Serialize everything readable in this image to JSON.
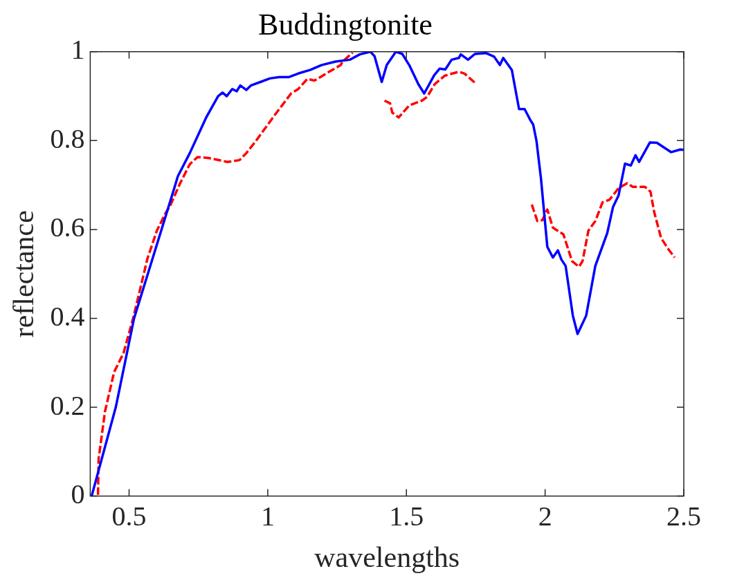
{
  "chart_data": {
    "type": "line",
    "title": "Buddingtonite",
    "xlabel": "wavelengths",
    "ylabel": "reflectance",
    "xlim": [
      0.36,
      2.5
    ],
    "ylim": [
      0,
      1
    ],
    "xticks": [
      0.5,
      1,
      1.5,
      2,
      2.5
    ],
    "yticks": [
      0,
      0.2,
      0.4,
      0.6,
      0.8,
      1
    ],
    "series": [
      {
        "color": "#0000ff",
        "line_style": "solid",
        "x": [
          0.365,
          0.452,
          0.518,
          0.617,
          0.663,
          0.676,
          0.719,
          0.778,
          0.821,
          0.837,
          0.852,
          0.872,
          0.888,
          0.901,
          0.923,
          0.939,
          0.974,
          1.008,
          1.041,
          1.077,
          1.11,
          1.153,
          1.194,
          1.245,
          1.296,
          1.332,
          1.37,
          1.385,
          1.411,
          1.429,
          1.462,
          1.485,
          1.51,
          1.543,
          1.564,
          1.6,
          1.62,
          1.64,
          1.663,
          1.689,
          1.696,
          1.722,
          1.747,
          1.786,
          1.816,
          1.837,
          1.849,
          1.88,
          1.906,
          1.926,
          1.946,
          1.957,
          1.969,
          1.985,
          2.008,
          2.028,
          2.046,
          2.059,
          2.074,
          2.1,
          2.117,
          2.148,
          2.181,
          2.224,
          2.245,
          2.265,
          2.288,
          2.309,
          2.326,
          2.339,
          2.378,
          2.403,
          2.454,
          2.487,
          2.5
        ],
        "values": [
          0,
          0.2,
          0.4,
          0.6,
          0.693,
          0.72,
          0.772,
          0.852,
          0.9,
          0.908,
          0.9,
          0.916,
          0.911,
          0.924,
          0.914,
          0.924,
          0.932,
          0.94,
          0.943,
          0.943,
          0.951,
          0.959,
          0.97,
          0.978,
          0.982,
          0.994,
          1.0,
          0.99,
          0.932,
          0.97,
          1.0,
          0.995,
          0.97,
          0.927,
          0.906,
          0.947,
          0.962,
          0.96,
          0.982,
          0.986,
          0.994,
          0.982,
          0.995,
          0.997,
          0.989,
          0.97,
          0.986,
          0.959,
          0.871,
          0.871,
          0.847,
          0.836,
          0.799,
          0.715,
          0.561,
          0.537,
          0.553,
          0.532,
          0.518,
          0.406,
          0.365,
          0.406,
          0.518,
          0.592,
          0.651,
          0.677,
          0.748,
          0.744,
          0.767,
          0.752,
          0.796,
          0.795,
          0.774,
          0.78,
          0.779
        ]
      },
      {
        "color": "#ff0000",
        "line_style": "dashed",
        "x": [
          0.388,
          0.39,
          0.413,
          0.446,
          0.48,
          0.515,
          0.566,
          0.6,
          0.63,
          0.65,
          0.684,
          0.719,
          0.747,
          0.786,
          0.855,
          0.898,
          0.923,
          0.957,
          1.026,
          1.084,
          1.11,
          1.143,
          1.168,
          1.219,
          1.263,
          1.27,
          1.306,
          1.36,
          1.421,
          1.441,
          1.449,
          1.472,
          1.51,
          1.556,
          1.574,
          1.602,
          1.638,
          1.689,
          1.709,
          1.747,
          1.85,
          1.952,
          1.959,
          1.972,
          1.99,
          2.008,
          2.028,
          2.066,
          2.097,
          2.122,
          2.135,
          2.156,
          2.181,
          2.207,
          2.232,
          2.265,
          2.296,
          2.316,
          2.36,
          2.38,
          2.393,
          2.418,
          2.444,
          2.467
        ],
        "values": [
          0.003,
          0.083,
          0.19,
          0.279,
          0.322,
          0.401,
          0.534,
          0.597,
          0.635,
          0.656,
          0.704,
          0.747,
          0.763,
          0.761,
          0.752,
          0.756,
          0.772,
          0.799,
          0.858,
          0.906,
          0.916,
          0.939,
          0.935,
          0.954,
          0.97,
          0.978,
          0.998,
          null,
          0.89,
          0.884,
          0.863,
          0.852,
          0.879,
          0.89,
          0.898,
          0.927,
          0.946,
          0.955,
          0.951,
          0.93,
          null,
          0.656,
          0.643,
          0.619,
          0.621,
          0.645,
          0.604,
          0.589,
          0.529,
          0.516,
          0.529,
          0.597,
          0.619,
          0.661,
          0.667,
          0.693,
          0.704,
          0.696,
          0.696,
          0.685,
          0.64,
          0.581,
          0.556,
          0.537
        ]
      }
    ]
  }
}
